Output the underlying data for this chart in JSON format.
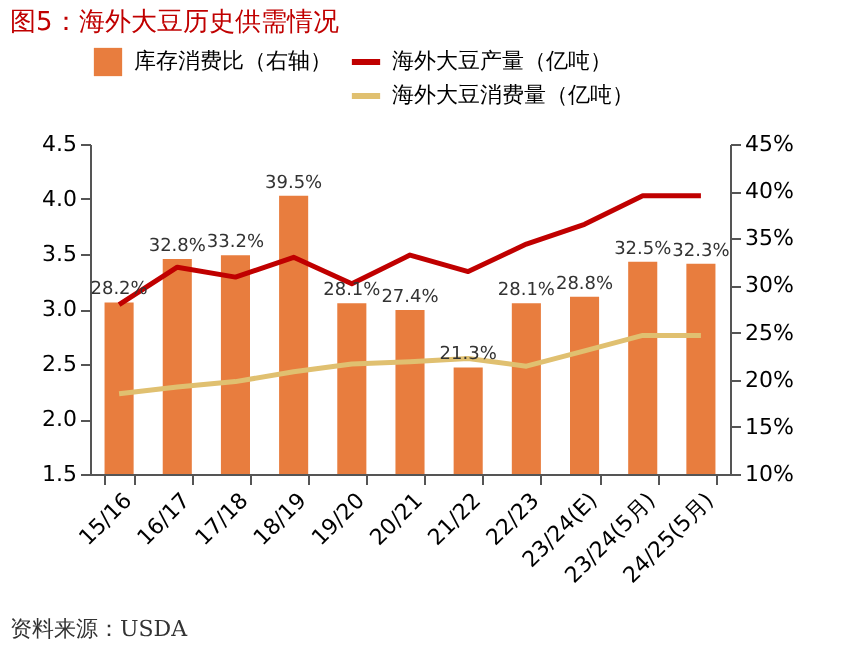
{
  "chart_data": {
    "type": "bar",
    "title": "图5：海外大豆历史供需情况",
    "categories": [
      "15/16",
      "16/17",
      "17/18",
      "18/19",
      "19/20",
      "20/21",
      "21/22",
      "22/23",
      "23/24(E)",
      "23/24(5月)",
      "24/25(5月)"
    ],
    "series": [
      {
        "name": "库存消费比（右轴）",
        "axis": "y2",
        "color": "#e87d3e",
        "values": [
          28.2,
          32.8,
          33.2,
          39.5,
          28.1,
          27.4,
          21.3,
          28.1,
          28.8,
          32.5,
          32.3
        ],
        "value_labels": [
          "28.2%",
          "32.8%",
          "33.2%",
          "39.5%",
          "28.1%",
          "27.4%",
          "21.3%",
          "28.1%",
          "28.8%",
          "32.5%",
          "32.3%"
        ]
      },
      {
        "name": "海外大豆产量（亿吨）",
        "type": "line",
        "color": "#c00000",
        "values": [
          3.04,
          3.38,
          3.29,
          3.47,
          3.23,
          3.49,
          3.34,
          3.59,
          3.77,
          4.03,
          4.03
        ]
      },
      {
        "name": "海外大豆消费量（亿吨）",
        "type": "line",
        "color": "#e0c070",
        "values": [
          2.23,
          2.29,
          2.34,
          2.43,
          2.5,
          2.52,
          2.55,
          2.48,
          2.62,
          2.76,
          2.76
        ]
      }
    ],
    "ylim": [
      1.5,
      4.5
    ],
    "yticks": [
      {
        "value": 1.5,
        "label": "1.5"
      },
      {
        "value": 2,
        "label": "2.0"
      },
      {
        "value": 2.5,
        "label": "2.5"
      },
      {
        "value": 3,
        "label": "3.0"
      },
      {
        "value": 3.5,
        "label": "3.5"
      },
      {
        "value": 4,
        "label": "4.0"
      },
      {
        "value": 4.5,
        "label": "4.5"
      }
    ],
    "y2lim": [
      10,
      45
    ],
    "y2ticks": [
      {
        "value": 10,
        "label": "10%"
      },
      {
        "value": 15,
        "label": "15%"
      },
      {
        "value": 20,
        "label": "20%"
      },
      {
        "value": 25,
        "label": "25%"
      },
      {
        "value": 30,
        "label": "30%"
      },
      {
        "value": 35,
        "label": "35%"
      },
      {
        "value": 40,
        "label": "40%"
      },
      {
        "value": 45,
        "label": "45%"
      }
    ],
    "legend": "top",
    "grid": false,
    "line_style": "solid",
    "marker": "none",
    "annotations": [
      "资料来源：USDA"
    ]
  }
}
